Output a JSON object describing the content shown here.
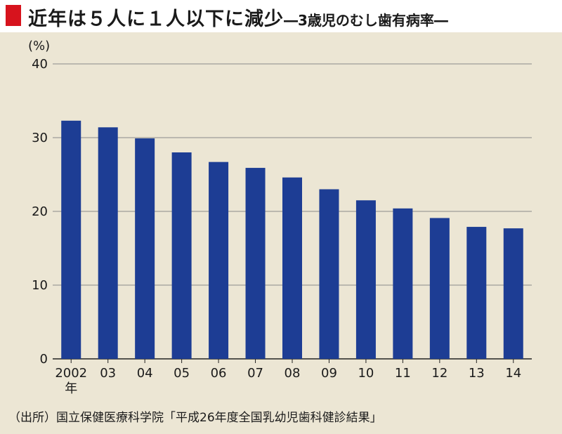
{
  "header": {
    "title_main": "近年は５人に１人以下に減少",
    "title_sub": "―3歳児のむし歯有病率―"
  },
  "source": "（出所）国立保健医療科学院「平成26年度全国乳幼児歯科健診結果」",
  "colors": {
    "bar": "#1d3d94",
    "accent": "#d7131d",
    "background": "#ece6d4",
    "grid": "#8a8a8a"
  },
  "chart_data": {
    "type": "bar",
    "y_unit": "(%)",
    "ylim": [
      0,
      40
    ],
    "y_ticks": [
      0,
      10,
      20,
      30,
      40
    ],
    "grid": true,
    "categories": [
      "2002",
      "03",
      "04",
      "05",
      "06",
      "07",
      "08",
      "09",
      "10",
      "11",
      "12",
      "13",
      "14"
    ],
    "first_category_suffix": "年",
    "values": [
      32.3,
      31.4,
      29.9,
      28.0,
      26.7,
      25.9,
      24.6,
      23.0,
      21.5,
      20.4,
      19.1,
      17.9,
      17.7
    ]
  }
}
